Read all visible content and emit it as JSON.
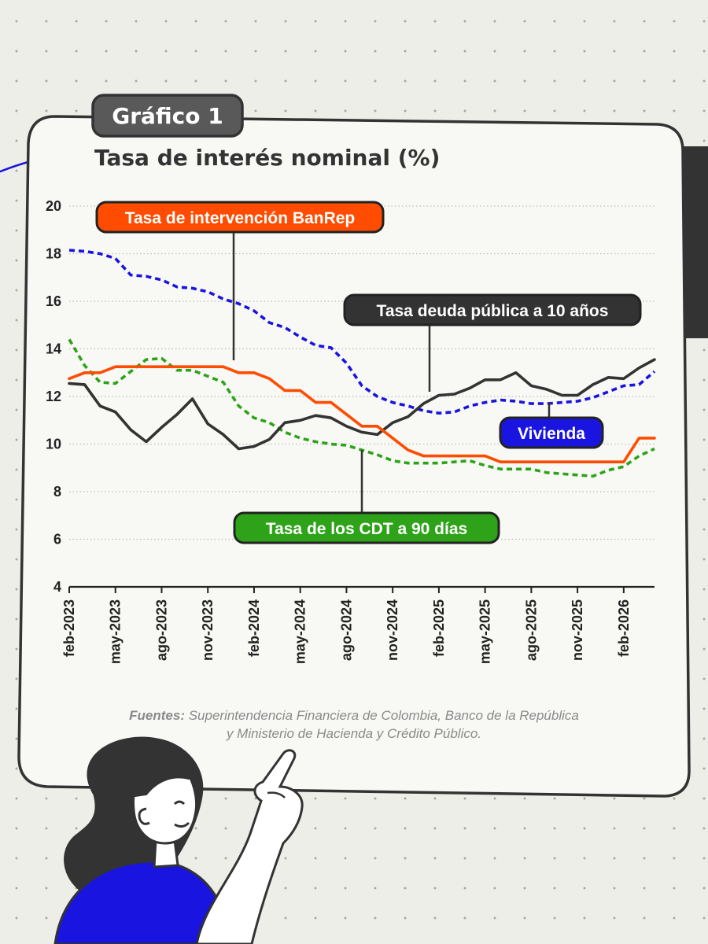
{
  "badge": "Gráfico 1",
  "colors": {
    "banrep": "#ff4c00",
    "deuda": "#333333",
    "vivienda": "#1a14e0",
    "cdt": "#2ea319",
    "panel_bg": "#f8f8f5",
    "page_bg": "#eeeee8",
    "skin": "#ffffff",
    "shirt": "#1a14e0",
    "hair": "#333333"
  },
  "source": {
    "prefix": "Fuentes:",
    "line1_rest": " Superintendencia Financiera de Colombia, Banco de la República",
    "line2": "y Ministerio de Hacienda y Crédito Público."
  },
  "chart_data": {
    "type": "line",
    "title": "Tasa de interés nominal (%)",
    "ylim": [
      4,
      20
    ],
    "yticks": [
      4,
      6,
      8,
      10,
      12,
      14,
      16,
      18,
      20
    ],
    "x_tick_labels": [
      "feb-2023",
      "may-2023",
      "ago-2023",
      "nov-2023",
      "feb-2024",
      "may-2024",
      "ago-2024",
      "nov-2024",
      "feb-2025",
      "may-2025",
      "ago-2025",
      "nov-2025",
      "feb-2026"
    ],
    "x_tick_index": [
      0,
      3,
      6,
      9,
      12,
      15,
      18,
      21,
      24,
      27,
      30,
      33,
      36
    ],
    "grid": true,
    "series": [
      {
        "name": "Tasa de intervención BanRep",
        "color_key": "banrep",
        "style": "solid",
        "values": [
          12.75,
          13.0,
          13.0,
          13.25,
          13.25,
          13.25,
          13.25,
          13.25,
          13.25,
          13.25,
          13.25,
          13.0,
          13.0,
          12.75,
          12.25,
          12.25,
          11.75,
          11.75,
          11.25,
          10.75,
          10.75,
          10.25,
          9.75,
          9.5,
          9.5,
          9.5,
          9.5,
          9.5,
          9.25,
          9.25,
          9.25,
          9.25,
          9.25,
          9.25,
          9.25,
          9.25,
          9.25,
          10.25,
          10.25
        ]
      },
      {
        "name": "Tasa deuda pública a 10 años",
        "color_key": "deuda",
        "style": "solid",
        "values": [
          12.55,
          12.5,
          11.6,
          11.35,
          10.6,
          10.1,
          10.7,
          11.25,
          11.9,
          10.85,
          10.4,
          9.8,
          9.9,
          10.2,
          10.9,
          11.0,
          11.2,
          11.1,
          10.75,
          10.5,
          10.4,
          10.9,
          11.15,
          11.7,
          12.05,
          12.1,
          12.35,
          12.7,
          12.7,
          13.0,
          12.45,
          12.3,
          12.05,
          12.05,
          12.5,
          12.8,
          12.75,
          13.2,
          13.55
        ]
      },
      {
        "name": "Vivienda",
        "color_key": "vivienda",
        "style": "dotted",
        "values": [
          18.15,
          18.1,
          18.0,
          17.8,
          17.1,
          17.05,
          16.9,
          16.6,
          16.55,
          16.4,
          16.1,
          15.9,
          15.6,
          15.1,
          14.9,
          14.5,
          14.15,
          14.05,
          13.4,
          12.45,
          12.0,
          11.75,
          11.6,
          11.4,
          11.3,
          11.35,
          11.6,
          11.75,
          11.85,
          11.8,
          11.7,
          11.7,
          11.75,
          11.8,
          11.95,
          12.2,
          12.45,
          12.5,
          13.05
        ]
      },
      {
        "name": "Tasa de los CDT a 90 días",
        "color_key": "cdt",
        "style": "dotted",
        "values": [
          14.4,
          13.3,
          12.6,
          12.55,
          13.05,
          13.55,
          13.6,
          13.1,
          13.1,
          12.85,
          12.6,
          11.6,
          11.1,
          10.9,
          10.5,
          10.25,
          10.1,
          10.0,
          9.95,
          9.75,
          9.55,
          9.3,
          9.2,
          9.2,
          9.2,
          9.25,
          9.3,
          9.1,
          8.95,
          8.95,
          8.95,
          8.8,
          8.75,
          8.7,
          8.65,
          8.9,
          9.05,
          9.5,
          9.8
        ]
      }
    ],
    "annotations": [
      {
        "text": "Tasa de intervención BanRep",
        "color_key": "banrep"
      },
      {
        "text": "Tasa deuda pública a 10 años",
        "color_key": "deuda"
      },
      {
        "text": "Vivienda",
        "color_key": "vivienda"
      },
      {
        "text": "Tasa de los CDT a 90 días",
        "color_key": "cdt"
      }
    ]
  }
}
